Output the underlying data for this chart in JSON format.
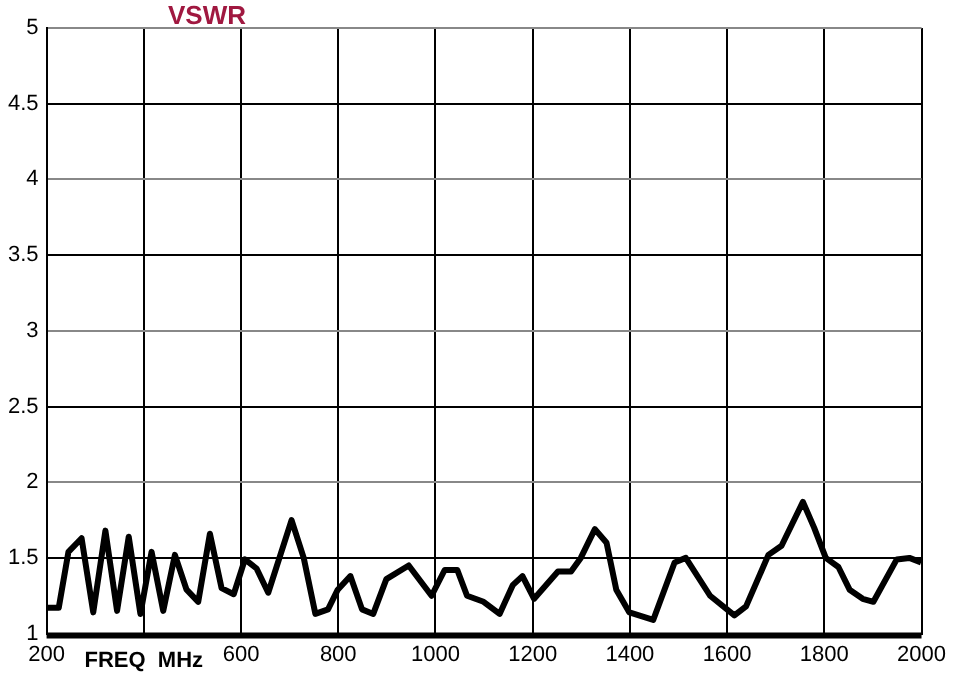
{
  "chart_data": {
    "type": "line",
    "title": "VSWR",
    "xlabel": "FREQ  MHz",
    "xlim": [
      200,
      2000
    ],
    "xticks": [
      200,
      {
        "value": 400,
        "label": null
      },
      600,
      800,
      1000,
      1200,
      1400,
      1600,
      1800,
      2000
    ],
    "ylim": [
      1,
      5
    ],
    "yticks": [
      1,
      1.5,
      2,
      2.5,
      3,
      3.5,
      4,
      4.5,
      5
    ],
    "grid": true,
    "marker": "none",
    "line_style": "solid",
    "series": [
      {
        "color": "#000000",
        "x": [
          200,
          225,
          245,
          272,
          296,
          321,
          345,
          369,
          393,
          416,
          440,
          464,
          488,
          512,
          536,
          560,
          585,
          608,
          632,
          656,
          704,
          729,
          753,
          779,
          799,
          825,
          849,
          872,
          899,
          945,
          992,
          1019,
          1045,
          1065,
          1099,
          1132,
          1159,
          1179,
          1203,
          1252,
          1279,
          1299,
          1328,
          1352,
          1372,
          1399,
          1448,
          1492,
          1515,
          1565,
          1615,
          1639,
          1685,
          1712,
          1756,
          1779,
          1803,
          1829,
          1852,
          1879,
          1901,
          1949,
          1975,
          1999
        ],
        "values": [
          1.17,
          1.17,
          1.54,
          1.63,
          1.14,
          1.68,
          1.15,
          1.64,
          1.13,
          1.54,
          1.15,
          1.52,
          1.29,
          1.21,
          1.66,
          1.3,
          1.26,
          1.49,
          1.43,
          1.27,
          1.75,
          1.5,
          1.13,
          1.16,
          1.29,
          1.38,
          1.16,
          1.13,
          1.36,
          1.45,
          1.25,
          1.42,
          1.42,
          1.25,
          1.21,
          1.13,
          1.32,
          1.38,
          1.23,
          1.41,
          1.41,
          1.5,
          1.69,
          1.6,
          1.29,
          1.14,
          1.09,
          1.47,
          1.5,
          1.25,
          1.12,
          1.18,
          1.52,
          1.58,
          1.87,
          1.7,
          1.5,
          1.44,
          1.29,
          1.23,
          1.21,
          1.49,
          1.5,
          1.47
        ]
      }
    ]
  }
}
